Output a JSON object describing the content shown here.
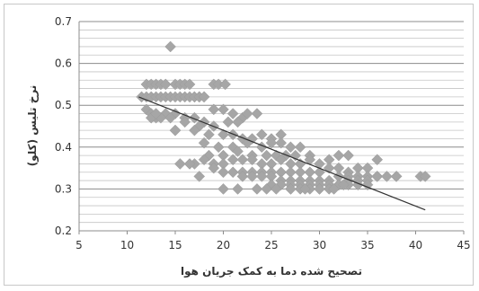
{
  "chart_data": {
    "type": "scatter",
    "title": "",
    "xlabel": "تصحیح شده دما به کمک جریان هوا",
    "ylabel": "نرخ تلیس (کلو)",
    "xlim": [
      5,
      45
    ],
    "ylim": [
      0.2,
      0.7
    ],
    "x_ticks": [
      5,
      10,
      15,
      20,
      25,
      30,
      35,
      40,
      45
    ],
    "y_ticks": [
      0.2,
      0.3,
      0.4,
      0.5,
      0.6,
      0.7
    ],
    "grid": "horizontal",
    "legend": "none",
    "marker_color": "#a6a6a6",
    "trendline_color": "#333333",
    "trendline": {
      "x": [
        11.2,
        41.0
      ],
      "y": [
        0.52,
        0.25
      ]
    },
    "series": [
      {
        "x": [
          14.5,
          11.5,
          12,
          12.5,
          13,
          13.5,
          14,
          15,
          15.5,
          16,
          16.5,
          17,
          17.5,
          18,
          19,
          19.5,
          20.2,
          12,
          12.5,
          13,
          13.5,
          14,
          14.5,
          15,
          15.5,
          16,
          16.5,
          17,
          17.5,
          18,
          12,
          12.5,
          13,
          14,
          15,
          16,
          17,
          18,
          19,
          20,
          21,
          22,
          12.5,
          13.5,
          14.5,
          16,
          17.5,
          19,
          20.5,
          21.5,
          22.5,
          23.5,
          13,
          15,
          17,
          18.5,
          20,
          21,
          22,
          23,
          24,
          25,
          26,
          15,
          18,
          19.5,
          21,
          22.5,
          24,
          25,
          26,
          27,
          28,
          17,
          18.5,
          20,
          21.5,
          23,
          24.5,
          25.5,
          26.5,
          27.5,
          29,
          18,
          19,
          20,
          21,
          22,
          23,
          24,
          25,
          26,
          27,
          28,
          29,
          30,
          31,
          32,
          33,
          19,
          20,
          21,
          22,
          23,
          24,
          25,
          26,
          27,
          28,
          29,
          30,
          31,
          32,
          33,
          34,
          35,
          22,
          23,
          24,
          25,
          26,
          27,
          28,
          29,
          30,
          31,
          32,
          33,
          34,
          35,
          36,
          25,
          26,
          27,
          28,
          29,
          30,
          31,
          32,
          33,
          34,
          35,
          36,
          37,
          38,
          27,
          28,
          29,
          30,
          31,
          32,
          33,
          34,
          35,
          36,
          38,
          40.5,
          41,
          15.5,
          16.5,
          17.5,
          20,
          21.5,
          23.5,
          24.5,
          25.5,
          27,
          28.5,
          30,
          31.5,
          32.5
        ],
        "y": [
          0.64,
          0.52,
          0.55,
          0.55,
          0.55,
          0.55,
          0.55,
          0.55,
          0.55,
          0.55,
          0.55,
          0.52,
          0.52,
          0.52,
          0.55,
          0.55,
          0.55,
          0.52,
          0.52,
          0.52,
          0.52,
          0.52,
          0.52,
          0.52,
          0.52,
          0.52,
          0.52,
          0.52,
          0.52,
          0.52,
          0.49,
          0.48,
          0.47,
          0.48,
          0.48,
          0.47,
          0.47,
          0.46,
          0.49,
          0.49,
          0.48,
          0.47,
          0.47,
          0.47,
          0.47,
          0.46,
          0.45,
          0.45,
          0.46,
          0.46,
          0.48,
          0.48,
          0.48,
          0.44,
          0.44,
          0.43,
          0.43,
          0.43,
          0.42,
          0.42,
          0.43,
          0.42,
          0.43,
          0.44,
          0.41,
          0.4,
          0.4,
          0.41,
          0.4,
          0.41,
          0.41,
          0.4,
          0.4,
          0.36,
          0.38,
          0.38,
          0.39,
          0.38,
          0.38,
          0.38,
          0.38,
          0.38,
          0.38,
          0.37,
          0.36,
          0.36,
          0.37,
          0.37,
          0.37,
          0.36,
          0.36,
          0.37,
          0.36,
          0.36,
          0.37,
          0.36,
          0.37,
          0.38,
          0.38,
          0.35,
          0.34,
          0.34,
          0.34,
          0.34,
          0.34,
          0.34,
          0.34,
          0.34,
          0.34,
          0.34,
          0.34,
          0.35,
          0.35,
          0.34,
          0.35,
          0.35,
          0.33,
          0.33,
          0.33,
          0.33,
          0.32,
          0.32,
          0.32,
          0.32,
          0.32,
          0.32,
          0.33,
          0.33,
          0.33,
          0.33,
          0.33,
          0.31,
          0.31,
          0.31,
          0.31,
          0.31,
          0.31,
          0.31,
          0.31,
          0.32,
          0.32,
          0.32,
          0.33,
          0.33,
          0.33,
          0.3,
          0.3,
          0.3,
          0.3,
          0.3,
          0.31,
          0.31,
          0.31,
          0.31,
          0.37,
          0.33,
          0.33,
          0.33,
          0.36,
          0.36,
          0.33,
          0.3,
          0.3,
          0.3,
          0.3,
          0.3,
          0.3,
          0.3,
          0.3,
          0.3,
          0.31
        ]
      }
    ]
  }
}
